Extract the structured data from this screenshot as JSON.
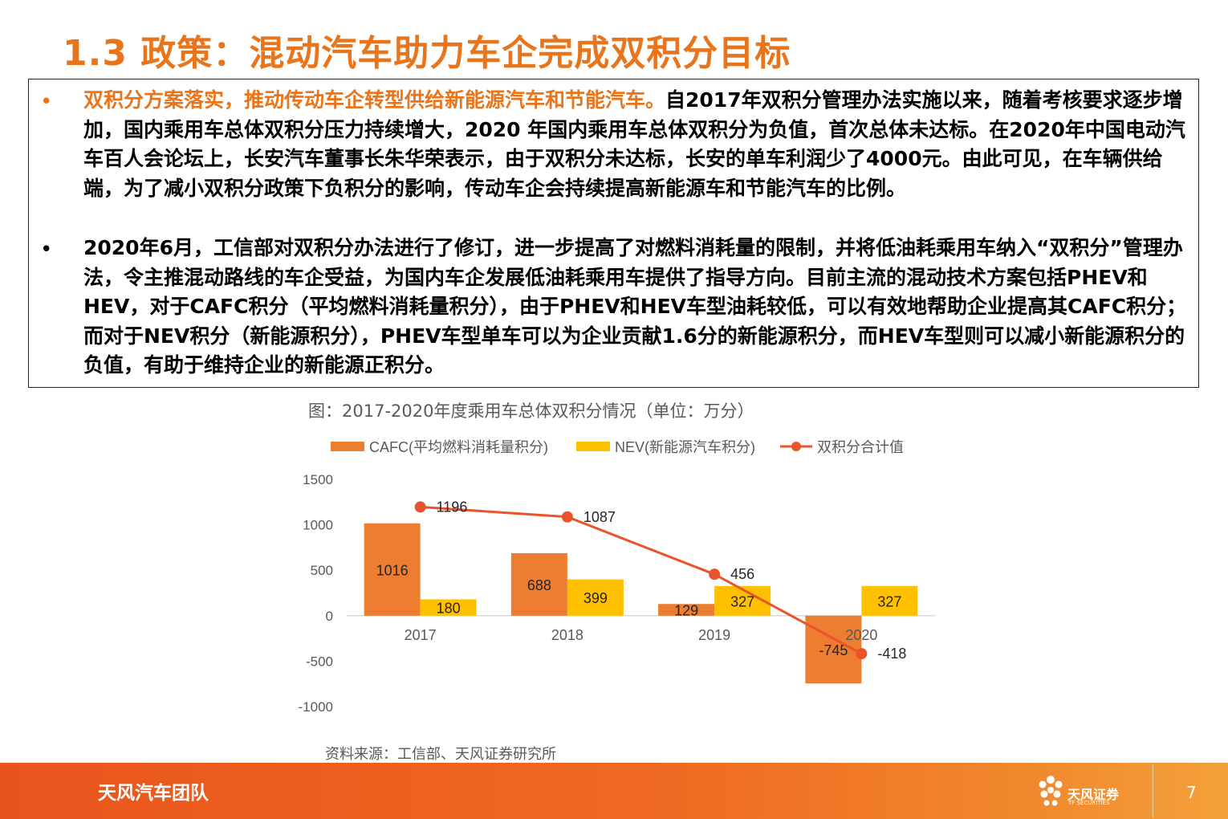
{
  "title": "1.3 政策：混动汽车助力车企完成双积分目标",
  "bullets": [
    {
      "marker": "•",
      "highlight": "双积分方案落实，推动传动车企转型供给新能源汽车和节能汽车。",
      "text": "自2017年双积分管理办法实施以来，随着考核要求逐步增加，国内乘用车总体双积分压力持续增大，2020 年国内乘用车总体双积分为负值，首次总体未达标。在2020年中国电动汽车百人会论坛上，长安汽车董事长朱华荣表示，由于双积分未达标，长安的单车利润少了4000元。由此可见，在车辆供给端，为了减小双积分政策下负积分的影响，传动车企会持续提高新能源车和节能汽车的比例。"
    },
    {
      "marker": "•",
      "highlight": "",
      "text": "2020年6月，工信部对双积分办法进行了修订，进一步提高了对燃料消耗量的限制，并将低油耗乘用车纳入“双积分”管理办法，令主推混动路线的车企受益，为国内车企发展低油耗乘用车提供了指导方向。目前主流的混动技术方案包括PHEV和HEV，对于CAFC积分（平均燃料消耗量积分），由于PHEV和HEV车型油耗较低，可以有效地帮助企业提高其CAFC积分；而对于NEV积分（新能源积分），PHEV车型单车可以为企业贡献1.6分的新能源积分，而HEV车型则可以减小新能源积分的负值，有助于维持企业的新能源正积分。"
    }
  ],
  "chart_caption": "图：2017-2020年度乘用车总体双积分情况（单位：万分）",
  "chart_data": {
    "type": "bar",
    "categories": [
      "2017",
      "2018",
      "2019",
      "2020"
    ],
    "series": [
      {
        "name": "CAFC(平均燃料消耗量积分)",
        "kind": "bar",
        "color": "#ED7D31",
        "values": [
          1016,
          688,
          129,
          -745
        ]
      },
      {
        "name": "NEV(新能源汽车积分)",
        "kind": "bar",
        "color": "#FFC000",
        "values": [
          180,
          399,
          327,
          327
        ]
      },
      {
        "name": "双积分合计值",
        "kind": "line",
        "color": "#E9542A",
        "values": [
          1196,
          1087,
          456,
          -418
        ]
      }
    ],
    "yticks": [
      1500,
      1000,
      500,
      0,
      -500,
      -1000
    ],
    "ylim": [
      -1000,
      1500
    ],
    "grid": false,
    "legend": "top"
  },
  "source": "资料来源：工信部、天风证券研究所",
  "footer": {
    "team": "天风汽车团队",
    "brand": "天风证券",
    "brand_en": "TF SECURITIES",
    "page": "7"
  },
  "colors": {
    "accent": "#E8751C",
    "footer": "#EF6A22",
    "cafc": "#ED7D31",
    "nev": "#FFC000",
    "total_line": "#E9542A"
  }
}
